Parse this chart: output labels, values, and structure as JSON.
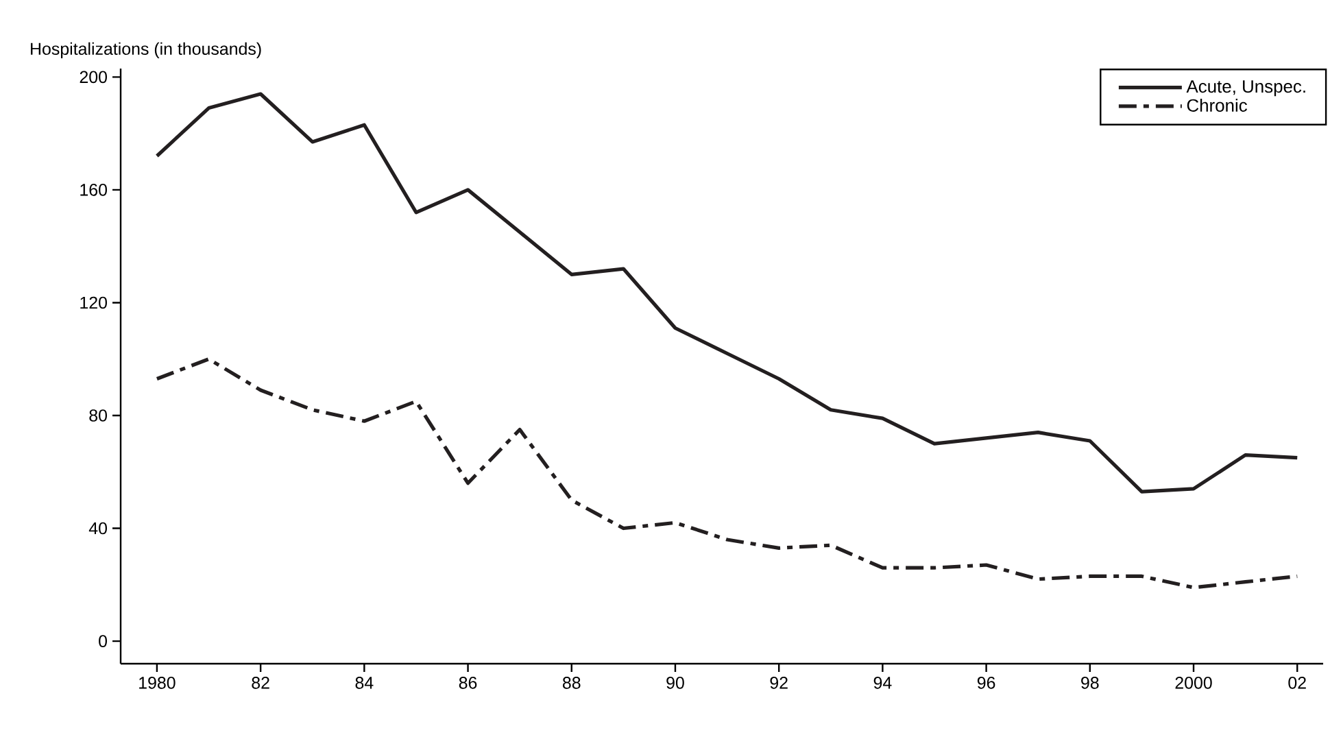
{
  "chart_data": {
    "type": "line",
    "ylabel": "Hospitalizations (in thousands)",
    "x": [
      1980,
      1981,
      1982,
      1983,
      1984,
      1985,
      1986,
      1987,
      1988,
      1989,
      1990,
      1991,
      1992,
      1993,
      1994,
      1995,
      1996,
      1997,
      1998,
      1999,
      2000,
      2001,
      2002
    ],
    "series": [
      {
        "name": "Acute, Unspec.",
        "color": "#231f20",
        "line_style": "solid",
        "values": [
          172,
          189,
          194,
          177,
          183,
          152,
          160,
          145,
          130,
          132,
          111,
          102,
          93,
          82,
          79,
          70,
          72,
          74,
          71,
          53,
          54,
          66,
          65
        ]
      },
      {
        "name": "Chronic",
        "color": "#231f20",
        "line_style": "dashdot",
        "values": [
          93,
          100,
          89,
          82,
          78,
          85,
          56,
          75,
          50,
          40,
          42,
          36,
          33,
          34,
          26,
          26,
          27,
          22,
          23,
          23,
          19,
          21,
          23
        ]
      }
    ],
    "xlim": [
      1979.3,
      2002.5
    ],
    "ylim": [
      -8,
      203
    ],
    "xticks": [
      {
        "value": 1980,
        "label": "1980"
      },
      {
        "value": 1982,
        "label": "82"
      },
      {
        "value": 1984,
        "label": "84"
      },
      {
        "value": 1986,
        "label": "86"
      },
      {
        "value": 1988,
        "label": "88"
      },
      {
        "value": 1990,
        "label": "90"
      },
      {
        "value": 1992,
        "label": "92"
      },
      {
        "value": 1994,
        "label": "94"
      },
      {
        "value": 1996,
        "label": "96"
      },
      {
        "value": 1998,
        "label": "98"
      },
      {
        "value": 2000,
        "label": "2000"
      },
      {
        "value": 2002,
        "label": "02"
      }
    ],
    "yticks": [
      0,
      40,
      80,
      120,
      160,
      200
    ],
    "grid": false,
    "legend": "top right",
    "marker": "none"
  }
}
